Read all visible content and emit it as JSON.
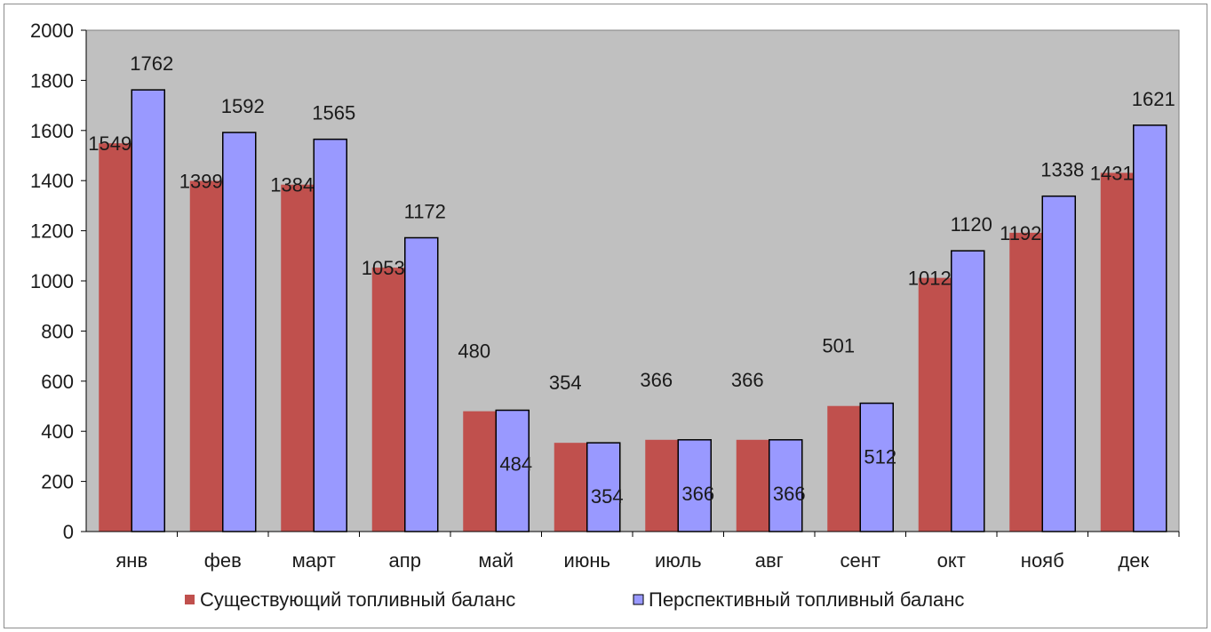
{
  "chart_data": {
    "type": "bar",
    "categories": [
      "янв",
      "фев",
      "март",
      "апр",
      "май",
      "июнь",
      "июль",
      "авг",
      "сент",
      "окт",
      "нояб",
      "дек"
    ],
    "series": [
      {
        "name": "Существующий топливный баланс",
        "color": "#c0504d",
        "values": [
          1549,
          1399,
          1384,
          1053,
          480,
          354,
          366,
          366,
          501,
          1012,
          1192,
          1431
        ]
      },
      {
        "name": "Перспективный топливный баланс",
        "color": "#9999ff",
        "values": [
          1762,
          1592,
          1565,
          1172,
          484,
          354,
          366,
          366,
          512,
          1120,
          1338,
          1621
        ]
      }
    ],
    "ylim": [
      0,
      2000
    ],
    "yticks": [
      0,
      200,
      400,
      600,
      800,
      1000,
      1200,
      1400,
      1600,
      1800,
      2000
    ],
    "plot_background": "#c0c0c0",
    "grid": false,
    "legend_position": "bottom"
  }
}
